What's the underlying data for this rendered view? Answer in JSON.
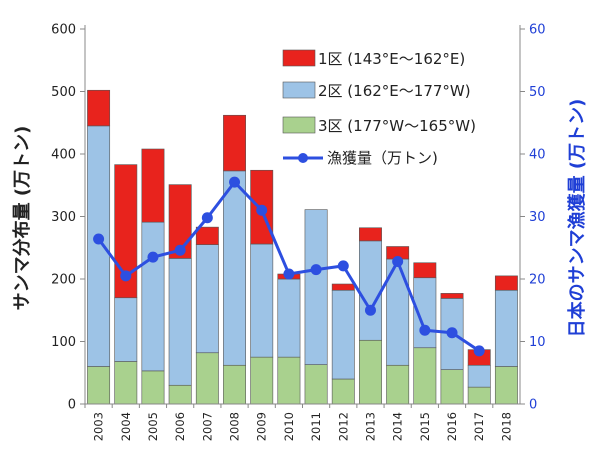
{
  "chart_data": {
    "type": "bar",
    "stacked": true,
    "categories": [
      "2003",
      "2004",
      "2005",
      "2006",
      "2007",
      "2008",
      "2009",
      "2010",
      "2011",
      "2012",
      "2013",
      "2014",
      "2015",
      "2016",
      "2017",
      "2018"
    ],
    "series": [
      {
        "name": "3区 (177°W～165°W)",
        "color": "#a9d18e",
        "axis": "left",
        "values": [
          60,
          68,
          53,
          30,
          82,
          62,
          75,
          75,
          63,
          40,
          102,
          62,
          90,
          55,
          27,
          60
        ]
      },
      {
        "name": "2区 (162°E～177°W)",
        "color": "#9dc3e6",
        "axis": "left",
        "values": [
          385,
          102,
          238,
          203,
          173,
          311,
          181,
          125,
          248,
          142,
          159,
          170,
          112,
          114,
          35,
          122
        ]
      },
      {
        "name": "1区 (143°E～162°E)",
        "color": "#e8231d",
        "axis": "left",
        "values": [
          57,
          213,
          117,
          118,
          28,
          89,
          118,
          8,
          0,
          10,
          21,
          20,
          24,
          8,
          25,
          23
        ]
      },
      {
        "name": "漁獲量（万トン)",
        "type": "line",
        "color": "#2d4fe0",
        "axis": "right",
        "values": [
          26.4,
          20.5,
          23.5,
          24.6,
          29.8,
          35.5,
          31.0,
          20.8,
          21.5,
          22.1,
          15.0,
          22.8,
          11.8,
          11.4,
          8.5,
          null
        ]
      }
    ],
    "y_left": {
      "label": "サンマ分布量 (万トン)",
      "lim": [
        0,
        600
      ],
      "ticks": [
        "0",
        "100",
        "200",
        "300",
        "400",
        "500",
        "600"
      ]
    },
    "y_right": {
      "label": "日本のサンマ漁獲量 (万トン)",
      "lim": [
        0,
        60
      ],
      "ticks": [
        "0",
        "10",
        "20",
        "30",
        "40",
        "50",
        "60"
      ]
    },
    "legend_placement": "top-right",
    "colors": {
      "left_axis_text": "#222222",
      "right_axis_text": "#1f3fd6",
      "gridline": "none"
    }
  }
}
